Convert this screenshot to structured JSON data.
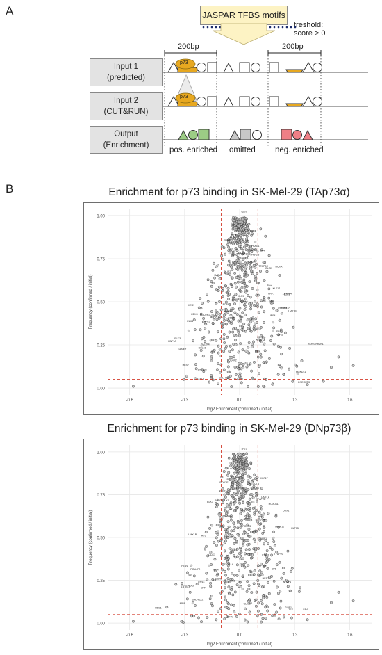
{
  "panel_a": {
    "letter": "A",
    "motif_box": "JASPAR TFBS motifs",
    "threshold_line1": "treshold:",
    "threshold_line2": "score > 0",
    "window_left": "200bp",
    "window_right": "200bp",
    "input1_line1": "Input 1",
    "input1_line2": "(predicted)",
    "input2_line1": "Input 2",
    "input2_line2": "(CUT&RUN)",
    "output_line1": "Output",
    "output_line2": "(Enrichment)",
    "p73_label": "p73",
    "pos_enriched": "pos. enriched",
    "omitted": "omitted",
    "neg_enriched": "neg. enriched",
    "colors": {
      "motif_box": "#fdf3c4",
      "p73": "#e7a820",
      "pos": "#9ccc85",
      "omitted": "#c8c8c8",
      "neg": "#ef7f86"
    }
  },
  "panel_b": {
    "letter": "B",
    "plots": [
      {
        "title": "Enrichment for p73 binding in SK-Mel-29 (TAp73α)",
        "xlabel": "log2 Enrichment (confirmed / initial)",
        "ylabel": "Frequency (confirmed / initial)",
        "x_ticks": [
          "-0.6",
          "-0.3",
          "0.0",
          "0.3",
          "0.6"
        ],
        "y_ticks": [
          "1.00",
          "0.75",
          "0.50",
          "0.25",
          "0.00"
        ],
        "point_labels": [
          "TP73",
          "TFAP2B",
          "KLF15",
          "PLAG1",
          "GLIS1",
          "BCL6B",
          "IRF4",
          "IRF8",
          "FOXP3",
          "LMX1B",
          "CDX4",
          "POU4F2",
          "POU2F1--SOX2",
          "DUXA",
          "CDX1",
          "HOXD11",
          "PROP1",
          "HNF1A",
          "NFIX",
          "NFIA",
          "ZNF384",
          "KLF11",
          "EGR4",
          "TFAP4",
          "PLAGL2",
          "E2F1",
          "ELK3",
          "SP1",
          "HES7",
          "IRF3",
          "ERF",
          "NR2F1",
          "TEAD4",
          "ONECUT3",
          "POU6F1",
          "HOXA10",
          "SP4",
          "KLF17",
          "TFAP2C",
          "CTCF",
          "ZBTB14",
          "GLIS2",
          "EGR3",
          "BHLHE22",
          "NRF1",
          "SP3",
          "ZBTB7A",
          "NFE2",
          "ELK4",
          "HINFP",
          "THAP11",
          "KLF16",
          "HES1",
          "ZIC2",
          "ZNF263",
          "E2F4",
          "KLF9",
          "RARA"
        ],
        "threshold_y": "0.05"
      },
      {
        "title": "Enrichment for p73 binding in SK-Mel-29 (DNp73β)",
        "xlabel": "log2 Enrichment (confirmed / initial)",
        "ylabel": "Frequency (confirmed / initial)",
        "x_ticks": [
          "-0.6",
          "-0.3",
          "0.0",
          "0.3",
          "0.6"
        ],
        "y_ticks": [
          "1.00",
          "0.75",
          "0.50",
          "0.25",
          "0.00"
        ],
        "point_labels": [
          "TP73",
          "TFAP2E",
          "TFAP2B",
          "KLF15",
          "GLIS1",
          "IRF4",
          "IRF8",
          "FOXP3",
          "LMX1B",
          "HOXC11",
          "CDX4",
          "POU4F2",
          "POU2F1--SOX2",
          "DUXA",
          "CDX1",
          "HOXD11",
          "HNF1A",
          "CUX1",
          "ONECUT3",
          "ZBTB7A",
          "NFIX",
          "EGR1",
          "ZNF384",
          "KLF12",
          "PLAGL2",
          "E2F1",
          "ELK3",
          "SP1",
          "HES7",
          "IRF3",
          "ERF",
          "NR2F1",
          "TEF",
          "NFIA",
          "ZBTB14",
          "CTCF",
          "GLIS2",
          "EGR3",
          "BHLHE22",
          "NRF1",
          "SP4",
          "KLF17",
          "TFAP2C",
          "KLF16",
          "HES1",
          "ZIC2",
          "THAP11",
          "HINFP",
          "E2F4",
          "NFIC--TLX1",
          "PAX5",
          "RARA"
        ],
        "threshold_y": "0.05"
      }
    ]
  }
}
